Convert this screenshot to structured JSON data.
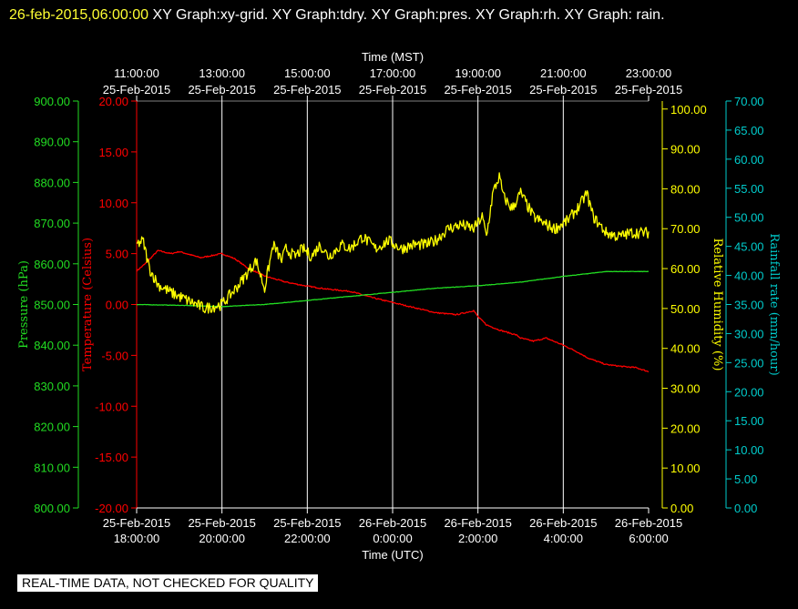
{
  "title": {
    "timestamp": "26-feb-2015,06:00:00",
    "text": " XY Graph:xy-grid.  XY Graph:tdry.  XY Graph:pres.  XY Graph:rh.  XY Graph: rain."
  },
  "footer": "REAL-TIME DATA, NOT CHECKED FOR QUALITY",
  "colors": {
    "background": "#000000",
    "grid": "#ffffff",
    "temperature": "#ff0000",
    "pressure": "#22dd22",
    "humidity": "#ffff00",
    "rain": "#00cccc",
    "text": "#ffffff"
  },
  "chart_data": {
    "type": "line",
    "grid": true,
    "x_top": {
      "label": "Time (MST)",
      "ticks": [
        {
          "time": "11:00:00",
          "date": "25-Feb-2015"
        },
        {
          "time": "13:00:00",
          "date": "25-Feb-2015"
        },
        {
          "time": "15:00:00",
          "date": "25-Feb-2015"
        },
        {
          "time": "17:00:00",
          "date": "25-Feb-2015"
        },
        {
          "time": "19:00:00",
          "date": "25-Feb-2015"
        },
        {
          "time": "21:00:00",
          "date": "25-Feb-2015"
        },
        {
          "time": "23:00:00",
          "date": "25-Feb-2015"
        }
      ]
    },
    "x_bottom": {
      "label": "Time (UTC)",
      "range": [
        "2015-02-25 18:00:00",
        "2015-02-26 06:00:00"
      ],
      "ticks": [
        {
          "date": "25-Feb-2015",
          "time": "18:00:00"
        },
        {
          "date": "25-Feb-2015",
          "time": "20:00:00"
        },
        {
          "date": "25-Feb-2015",
          "time": "22:00:00"
        },
        {
          "date": "26-Feb-2015",
          "time": "0:00:00"
        },
        {
          "date": "26-Feb-2015",
          "time": "2:00:00"
        },
        {
          "date": "26-Feb-2015",
          "time": "4:00:00"
        },
        {
          "date": "26-Feb-2015",
          "time": "6:00:00"
        }
      ]
    },
    "axes": {
      "pressure": {
        "label": "Pressure (hPa)",
        "range": [
          800,
          900
        ],
        "ticks": [
          "800.00",
          "810.00",
          "820.00",
          "830.00",
          "840.00",
          "850.00",
          "860.00",
          "870.00",
          "880.00",
          "890.00",
          "900.00"
        ]
      },
      "temperature": {
        "label": "Temperature (Celsius)",
        "range": [
          -20,
          20
        ],
        "ticks": [
          "-20.00",
          "-15.00",
          "-10.00",
          "-5.00",
          "0.00",
          "5.00",
          "10.00",
          "15.00",
          "20.00"
        ]
      },
      "humidity": {
        "label": "Relative Humidity (%)",
        "range": [
          0,
          102
        ],
        "ticks": [
          "0.00",
          "10.00",
          "20.00",
          "30.00",
          "40.00",
          "50.00",
          "60.00",
          "70.00",
          "80.00",
          "90.00",
          "100.00"
        ]
      },
      "rain": {
        "label": "Rainfall rate (mm/hour)",
        "range": [
          0,
          70
        ],
        "ticks": [
          "0.00",
          "5.00",
          "10.00",
          "15.00",
          "20.00",
          "25.00",
          "30.00",
          "35.00",
          "40.00",
          "45.00",
          "50.00",
          "55.00",
          "60.00",
          "65.00",
          "70.00"
        ]
      }
    },
    "series": [
      {
        "name": "Temperature",
        "axis": "temperature",
        "color": "#ff0000",
        "x_hours_utc": [
          0,
          0.2,
          0.5,
          0.8,
          1.0,
          1.5,
          2.0,
          2.3,
          2.6,
          3.0,
          3.5,
          4.0,
          4.5,
          5.0,
          5.5,
          6.0,
          6.5,
          7.0,
          7.5,
          7.9,
          8.0,
          8.2,
          8.5,
          8.9,
          9.0,
          9.3,
          9.6,
          10.0,
          10.3,
          10.6,
          11.0,
          11.4,
          11.7,
          12.0
        ],
        "values": [
          3.3,
          4.0,
          5.3,
          5.0,
          5.2,
          4.6,
          5.0,
          4.5,
          3.6,
          2.8,
          2.2,
          1.8,
          1.5,
          1.3,
          0.7,
          0.2,
          -0.3,
          -0.8,
          -1.0,
          -0.6,
          -1.2,
          -2.0,
          -2.5,
          -3.0,
          -3.3,
          -3.6,
          -3.3,
          -4.0,
          -4.6,
          -5.3,
          -5.9,
          -6.1,
          -6.2,
          -6.6
        ]
      },
      {
        "name": "Pressure",
        "axis": "pressure",
        "color": "#22dd22",
        "x_hours_utc": [
          0,
          1,
          2,
          3,
          4,
          5,
          6,
          7,
          8,
          9,
          10,
          11,
          12
        ],
        "values": [
          850.0,
          849.8,
          849.5,
          850.0,
          851.0,
          852.0,
          853.0,
          854.0,
          854.6,
          855.5,
          856.9,
          858.1,
          858.1
        ]
      },
      {
        "name": "Relative Humidity",
        "axis": "humidity",
        "color": "#ffff00",
        "x_hours_utc": [
          0,
          0.15,
          0.3,
          0.5,
          0.8,
          1.2,
          1.6,
          2.0,
          2.4,
          2.8,
          3.0,
          3.2,
          3.4,
          3.5,
          3.7,
          3.9,
          4.1,
          4.3,
          4.5,
          4.8,
          5.0,
          5.3,
          5.6,
          5.9,
          6.2,
          6.5,
          6.8,
          7.0,
          7.3,
          7.6,
          7.9,
          8.1,
          8.2,
          8.35,
          8.5,
          8.6,
          8.8,
          9.0,
          9.3,
          9.6,
          9.8,
          10.1,
          10.4,
          10.55,
          10.7,
          11.0,
          11.3,
          11.6,
          12.0
        ],
        "values": [
          66,
          67,
          60,
          56,
          54,
          52,
          50,
          51,
          56,
          62,
          55,
          66,
          62,
          65,
          63,
          65,
          63,
          66,
          63,
          66,
          65,
          68,
          65,
          67,
          65,
          66,
          66,
          67,
          70,
          71,
          70,
          73,
          68,
          79,
          83,
          78,
          75,
          79,
          73,
          71,
          70,
          72,
          76,
          79,
          73,
          69,
          68,
          69,
          69
        ]
      },
      {
        "name": "Rainfall rate",
        "axis": "rain",
        "color": "#00cccc",
        "x_hours_utc": [],
        "values": []
      }
    ]
  }
}
